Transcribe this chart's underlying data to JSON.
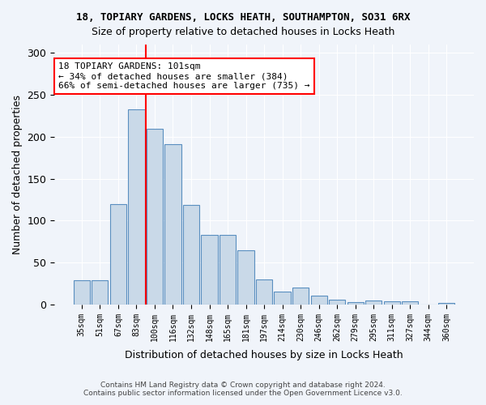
{
  "title": "18, TOPIARY GARDENS, LOCKS HEATH, SOUTHAMPTON, SO31 6RX",
  "subtitle": "Size of property relative to detached houses in Locks Heath",
  "xlabel": "Distribution of detached houses by size in Locks Heath",
  "ylabel": "Number of detached properties",
  "categories": [
    "35sqm",
    "51sqm",
    "67sqm",
    "83sqm",
    "100sqm",
    "116sqm",
    "132sqm",
    "148sqm",
    "165sqm",
    "181sqm",
    "197sqm",
    "214sqm",
    "230sqm",
    "246sqm",
    "262sqm",
    "279sqm",
    "295sqm",
    "311sqm",
    "327sqm",
    "344sqm",
    "360sqm"
  ],
  "values": [
    29,
    29,
    120,
    233,
    210,
    191,
    119,
    83,
    83,
    65,
    30,
    15,
    20,
    11,
    6,
    3,
    5,
    4,
    4,
    0,
    2
  ],
  "bar_color": "#c9d9e8",
  "bar_edge_color": "#5a8fc0",
  "vline_x": 4,
  "vline_color": "red",
  "annotation_title": "18 TOPIARY GARDENS: 101sqm",
  "annotation_line1": "← 34% of detached houses are smaller (384)",
  "annotation_line2": "66% of semi-detached houses are larger (735) →",
  "annotation_box_color": "white",
  "annotation_box_edge": "red",
  "footer1": "Contains HM Land Registry data © Crown copyright and database right 2024.",
  "footer2": "Contains public sector information licensed under the Open Government Licence v3.0.",
  "ylim": [
    0,
    310
  ],
  "background_color": "#f0f4fa"
}
